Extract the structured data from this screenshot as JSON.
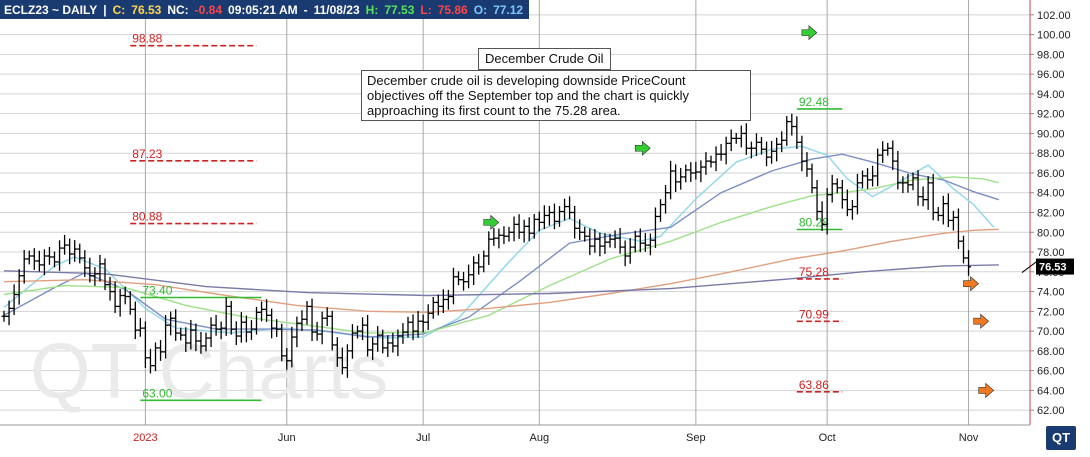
{
  "header": {
    "symbol": "ECLZ23 ~ DAILY",
    "separator": "|",
    "close_label": "C:",
    "close_value": "76.53",
    "net_change_label": "NC:",
    "net_change_value": "-0.84",
    "time": "09:05:21 AM",
    "date": "11/08/23",
    "high_label": "H:",
    "high_value": "77.53",
    "low_label": "L:",
    "low_value": "75.86",
    "open_label": "O:",
    "open_value": "77.12"
  },
  "annotation": {
    "title": "December Crude Oil",
    "note": "December crude oil is developing downside PriceCount objectives off the September top and the chart is quickly approaching its first count to the 75.28 area."
  },
  "watermark": "QT Charts",
  "logo_text": "QT",
  "colors": {
    "header_bg": "#1a3a72",
    "price_bar": "#000000",
    "ma_light_blue": "#8fd6e8",
    "ma_blue": "#7b8fc6",
    "ma_green": "#9fe08a",
    "ma_orange": "#e0a080",
    "ma_purple": "#7a7aa8",
    "target_red": "#cc2222",
    "target_green": "#33bb33",
    "arrow_green": "#33cc33",
    "arrow_orange": "#f07820"
  },
  "chart_data": {
    "type": "ohlc",
    "title": "December Crude Oil",
    "ylim": [
      60.5,
      103.5
    ],
    "y_ticks": [
      "102.00",
      "100.00",
      "98.00",
      "96.00",
      "94.00",
      "92.00",
      "90.00",
      "88.00",
      "86.00",
      "84.00",
      "82.00",
      "80.00",
      "78.00",
      "76.00",
      "74.00",
      "72.00",
      "70.00",
      "68.00",
      "66.00",
      "64.00",
      "62.00"
    ],
    "x_labels": [
      {
        "label": "2023",
        "index": 28,
        "red": true
      },
      {
        "label": "Jun",
        "index": 56,
        "red": false
      },
      {
        "label": "Jul",
        "index": 83,
        "red": false
      },
      {
        "label": "Aug",
        "index": 106,
        "red": false
      },
      {
        "label": "Sep",
        "index": 137,
        "red": false
      },
      {
        "label": "Oct",
        "index": 163,
        "red": false
      },
      {
        "label": "Nov",
        "index": 191,
        "red": false
      }
    ],
    "bar_count": 198,
    "closes": [
      71.5,
      72.3,
      73.7,
      75.6,
      77.3,
      77.6,
      77.1,
      76.7,
      77.6,
      77.5,
      77.0,
      78.4,
      78.7,
      77.8,
      78.3,
      77.4,
      76.4,
      75.6,
      75.8,
      76.8,
      74.7,
      74.0,
      72.5,
      73.6,
      73.5,
      72.2,
      70.1,
      70.3,
      67.3,
      66.5,
      68.3,
      67.9,
      70.6,
      71.3,
      69.8,
      69.6,
      68.8,
      70.1,
      69.0,
      68.5,
      69.3,
      70.6,
      70.2,
      70.3,
      72.5,
      70.2,
      69.5,
      70.9,
      69.9,
      70.2,
      71.9,
      72.2,
      71.6,
      70.3,
      70.2,
      67.5,
      67.0,
      69.4,
      70.8,
      71.2,
      72.5,
      69.9,
      69.7,
      71.3,
      71.5,
      68.6,
      67.3,
      66.3,
      68.0,
      69.8,
      70.0,
      70.6,
      68.1,
      68.7,
      69.6,
      68.3,
      68.8,
      68.5,
      69.5,
      69.9,
      70.9,
      70.0,
      71.0,
      70.9,
      71.8,
      72.9,
      72.5,
      73.2,
      73.5,
      75.5,
      75.2,
      75.0,
      75.7,
      76.9,
      76.5,
      77.6,
      79.3,
      79.4,
      79.7,
      79.6,
      80.0,
      80.8,
      80.0,
      80.6,
      79.9,
      81.3,
      81.0,
      81.7,
      82.0,
      81.1,
      82.1,
      82.6,
      82.0,
      80.4,
      80.0,
      79.6,
      78.6,
      79.3,
      78.6,
      79.0,
      79.3,
      79.4,
      78.5,
      77.6,
      78.5,
      79.6,
      78.9,
      78.7,
      79.2,
      81.6,
      82.8,
      84.0,
      86.2,
      85.1,
      85.6,
      86.3,
      86.0,
      86.1,
      86.6,
      87.2,
      87.1,
      87.9,
      87.9,
      89.0,
      89.5,
      89.5,
      90.0,
      88.5,
      88.5,
      89.1,
      88.4,
      87.6,
      88.2,
      88.9,
      89.3,
      91.2,
      90.7,
      89.1,
      87.2,
      86.4,
      84.5,
      82.1,
      80.8,
      83.8,
      84.9,
      84.5,
      83.3,
      82.3,
      82.6,
      85.0,
      85.7,
      85.3,
      85.7,
      87.8,
      88.3,
      88.5,
      87.2,
      85.0,
      85.0,
      84.8,
      85.5,
      83.6,
      83.3,
      85.0,
      82.0,
      81.7,
      82.9,
      81.2,
      81.5,
      79.1,
      77.4,
      76.5
    ],
    "moving_averages": [
      {
        "name": "",
        "color": "#8fd6e8",
        "points": [
          [
            0,
            72.4
          ],
          [
            10,
            76.6
          ],
          [
            14,
            77.5
          ],
          [
            20,
            76.3
          ],
          [
            28,
            72.3
          ],
          [
            34,
            70.3
          ],
          [
            45,
            69.8
          ],
          [
            55,
            70.3
          ],
          [
            65,
            69.9
          ],
          [
            75,
            69.3
          ],
          [
            83,
            69.4
          ],
          [
            90,
            71.3
          ],
          [
            100,
            77.0
          ],
          [
            106,
            80.2
          ],
          [
            112,
            81.4
          ],
          [
            118,
            79.9
          ],
          [
            126,
            79.1
          ],
          [
            130,
            79.6
          ],
          [
            137,
            83.4
          ],
          [
            145,
            87.1
          ],
          [
            152,
            88.4
          ],
          [
            158,
            88.7
          ],
          [
            163,
            87.8
          ],
          [
            167,
            85.4
          ],
          [
            172,
            83.6
          ],
          [
            178,
            85.3
          ],
          [
            183,
            86.8
          ],
          [
            188,
            84.4
          ],
          [
            192,
            82.8
          ],
          [
            196,
            80.5
          ]
        ]
      },
      {
        "name": "",
        "color": "#7b8fc6",
        "points": [
          [
            0,
            71.6
          ],
          [
            10,
            74.4
          ],
          [
            16,
            75.9
          ],
          [
            24,
            74.2
          ],
          [
            32,
            71.2
          ],
          [
            42,
            70.2
          ],
          [
            52,
            70.2
          ],
          [
            62,
            70.1
          ],
          [
            72,
            69.4
          ],
          [
            83,
            69.7
          ],
          [
            92,
            71.4
          ],
          [
            102,
            75.0
          ],
          [
            112,
            78.9
          ],
          [
            122,
            79.8
          ],
          [
            132,
            80.5
          ],
          [
            142,
            84.0
          ],
          [
            152,
            86.2
          ],
          [
            160,
            87.4
          ],
          [
            166,
            87.9
          ],
          [
            172,
            87.1
          ],
          [
            180,
            85.9
          ],
          [
            186,
            85.3
          ],
          [
            192,
            84.1
          ],
          [
            197,
            83.3
          ]
        ]
      },
      {
        "name": "",
        "color": "#9fe08a",
        "points": [
          [
            0,
            73.7
          ],
          [
            12,
            74.6
          ],
          [
            24,
            74.4
          ],
          [
            36,
            72.6
          ],
          [
            48,
            71.4
          ],
          [
            60,
            70.6
          ],
          [
            72,
            69.8
          ],
          [
            84,
            69.9
          ],
          [
            96,
            71.6
          ],
          [
            108,
            74.6
          ],
          [
            120,
            77.3
          ],
          [
            132,
            79.1
          ],
          [
            142,
            81.0
          ],
          [
            152,
            82.6
          ],
          [
            160,
            83.7
          ],
          [
            166,
            84.0
          ],
          [
            172,
            84.4
          ],
          [
            180,
            85.3
          ],
          [
            188,
            85.6
          ],
          [
            194,
            85.4
          ],
          [
            197,
            85.0
          ]
        ]
      },
      {
        "name": "",
        "color": "#e0a080",
        "points": [
          [
            0,
            75.0
          ],
          [
            16,
            75.2
          ],
          [
            30,
            74.7
          ],
          [
            44,
            73.6
          ],
          [
            58,
            72.6
          ],
          [
            72,
            72.0
          ],
          [
            84,
            71.9
          ],
          [
            96,
            72.3
          ],
          [
            108,
            72.9
          ],
          [
            120,
            73.8
          ],
          [
            132,
            74.8
          ],
          [
            144,
            76.0
          ],
          [
            156,
            77.3
          ],
          [
            166,
            78.1
          ],
          [
            176,
            79.1
          ],
          [
            186,
            79.9
          ],
          [
            192,
            80.2
          ],
          [
            197,
            80.3
          ]
        ]
      },
      {
        "name": "",
        "color": "#7a7aa8",
        "points": [
          [
            0,
            76.1
          ],
          [
            20,
            75.8
          ],
          [
            40,
            74.5
          ],
          [
            60,
            73.9
          ],
          [
            84,
            73.6
          ],
          [
            108,
            73.8
          ],
          [
            132,
            74.3
          ],
          [
            156,
            75.3
          ],
          [
            170,
            76.0
          ],
          [
            186,
            76.6
          ],
          [
            197,
            76.7
          ]
        ]
      }
    ],
    "targets": [
      {
        "label": "98.88",
        "value": 98.88,
        "color": "#cc2222",
        "dashed": true,
        "from": 25,
        "to": 50
      },
      {
        "label": "87.23",
        "value": 87.23,
        "color": "#cc2222",
        "dashed": true,
        "from": 25,
        "to": 50
      },
      {
        "label": "80.88",
        "value": 80.88,
        "color": "#cc2222",
        "dashed": true,
        "from": 25,
        "to": 50
      },
      {
        "label": "73.40",
        "value": 73.4,
        "color": "#33bb33",
        "dashed": false,
        "from": 27,
        "to": 51
      },
      {
        "label": "63.00",
        "value": 63.0,
        "color": "#33bb33",
        "dashed": false,
        "from": 27,
        "to": 51
      },
      {
        "label": "92.48",
        "value": 92.48,
        "color": "#33bb33",
        "dashed": false,
        "from": 157,
        "to": 166
      },
      {
        "label": "80.28",
        "value": 80.28,
        "color": "#33bb33",
        "dashed": false,
        "from": 157,
        "to": 166
      },
      {
        "label": "75.28",
        "value": 75.28,
        "color": "#cc2222",
        "dashed": true,
        "from": 157,
        "to": 166
      },
      {
        "label": "70.99",
        "value": 70.99,
        "color": "#cc2222",
        "dashed": true,
        "from": 157,
        "to": 166
      },
      {
        "label": "63.86",
        "value": 63.86,
        "color": "#cc2222",
        "dashed": true,
        "from": 157,
        "to": 166
      }
    ],
    "arrows": [
      {
        "type": "up",
        "color": "#33cc33",
        "at": 158,
        "value": 100.2
      },
      {
        "type": "up",
        "color": "#33cc33",
        "at": 125,
        "value": 88.5
      },
      {
        "type": "up",
        "color": "#33cc33",
        "at": 95,
        "value": 81.0
      },
      {
        "type": "down",
        "color": "#f07820",
        "at": 190,
        "value": 74.8
      },
      {
        "type": "down",
        "color": "#f07820",
        "at": 192,
        "value": 71.0
      },
      {
        "type": "down",
        "color": "#f07820",
        "at": 193,
        "value": 64.0
      }
    ],
    "last_price": {
      "label": "76.53",
      "value": 76.53
    }
  }
}
